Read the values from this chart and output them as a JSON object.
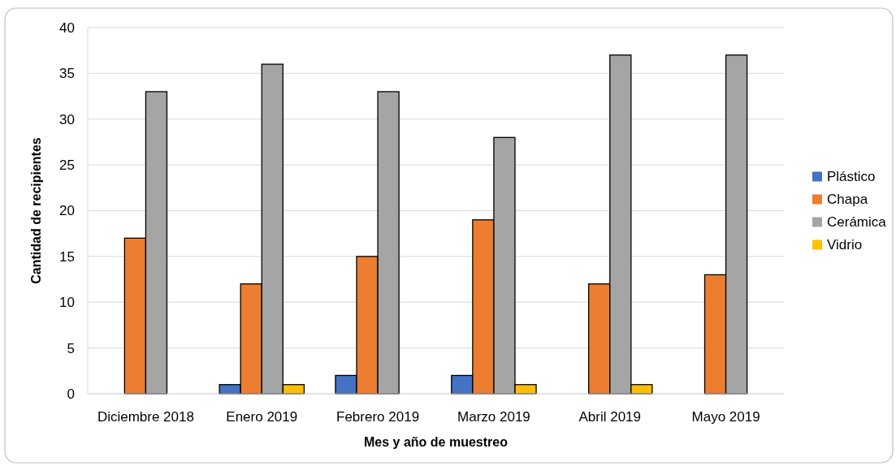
{
  "chart_data": {
    "type": "bar",
    "xlabel": "Mes y año de muestreo",
    "ylabel": "Cantidad de recipientes",
    "categories": [
      "Diciembre 2018",
      "Enero 2019",
      "Febrero 2019",
      "Marzo 2019",
      "Abril 2019",
      "Mayo 2019"
    ],
    "series": [
      {
        "name": "Plástico",
        "color": "#4472c4",
        "values": [
          0,
          1,
          2,
          2,
          0,
          0
        ]
      },
      {
        "name": "Chapa",
        "color": "#ed7d31",
        "values": [
          17,
          12,
          15,
          19,
          12,
          13
        ]
      },
      {
        "name": "Cerámica",
        "color": "#a5a5a5",
        "values": [
          33,
          36,
          33,
          28,
          37,
          37
        ]
      },
      {
        "name": "Vidrio",
        "color": "#ffc000",
        "values": [
          0,
          1,
          0,
          1,
          1,
          0
        ]
      }
    ],
    "ylim": [
      0,
      40
    ],
    "yticks": [
      0,
      5,
      10,
      15,
      20,
      25,
      30,
      35,
      40
    ],
    "grid": "y",
    "legend": "right"
  }
}
